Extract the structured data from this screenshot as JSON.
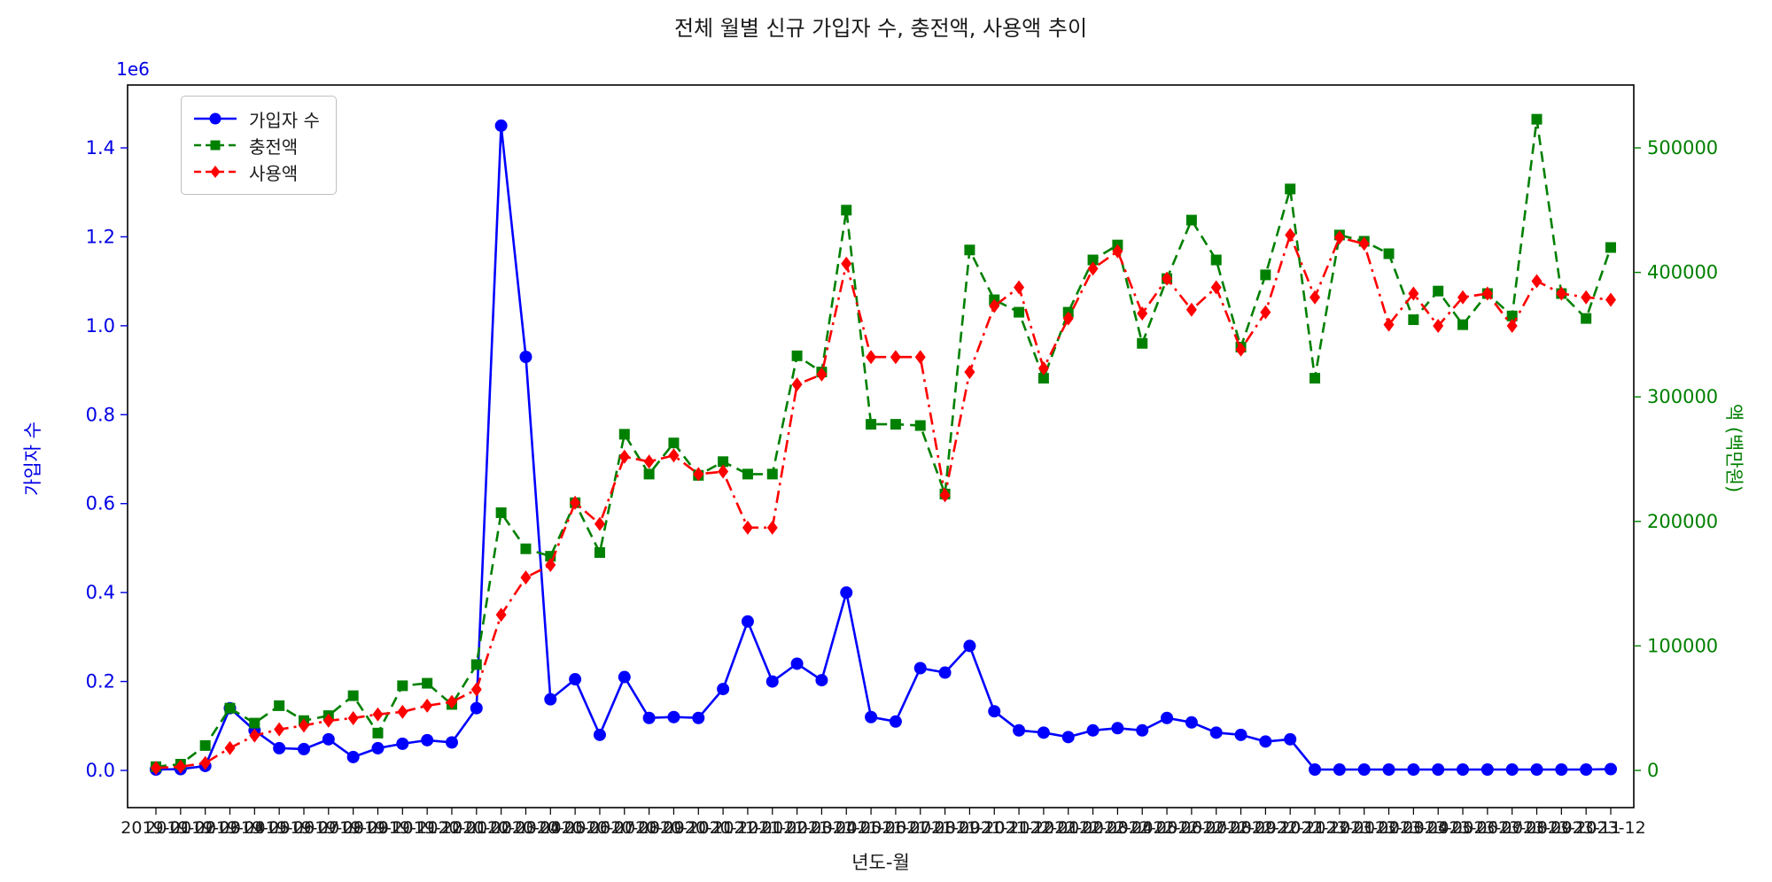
{
  "chart_data": {
    "type": "line",
    "title": "전체 월별 신규 가입자 수, 충전액, 사용액 추이",
    "xlabel": "년도-월",
    "ylabel_left": "가입자 수",
    "ylabel_right": "액 (백만원)",
    "legend_position": "upper-left",
    "grid": false,
    "left_axis": {
      "offset_text": "1e6",
      "color": "#0000e6",
      "max": 1400000,
      "ticks": [
        0,
        0.2,
        0.4,
        0.6,
        0.8,
        1.0,
        1.2,
        1.4
      ],
      "tick_labels": [
        "0.0",
        "0.2",
        "0.4",
        "0.6",
        "0.8",
        "1.0",
        "1.2",
        "1.4"
      ]
    },
    "right_axis": {
      "color": "#008000",
      "max": 500000,
      "ticks": [
        0,
        100000,
        200000,
        300000,
        400000,
        500000
      ],
      "tick_labels": [
        "0",
        "100000",
        "200000",
        "300000",
        "400000",
        "500000"
      ]
    },
    "categories": [
      "2019-01",
      "2019-02",
      "2019-03",
      "2019-04",
      "2019-05",
      "2019-06",
      "2019-07",
      "2019-08",
      "2019-09",
      "2019-10",
      "2019-11",
      "2019-12",
      "2020-01",
      "2020-02",
      "2020-03",
      "2020-04",
      "2020-05",
      "2020-06",
      "2020-07",
      "2020-08",
      "2020-09",
      "2020-10",
      "2020-11",
      "2020-12",
      "2021-01",
      "2021-02",
      "2021-03",
      "2021-04",
      "2021-05",
      "2021-06",
      "2021-07",
      "2021-08",
      "2021-09",
      "2021-10",
      "2021-11",
      "2021-12",
      "2022-01",
      "2022-02",
      "2022-03",
      "2022-04",
      "2022-05",
      "2022-06",
      "2022-07",
      "2022-08",
      "2022-09",
      "2022-10",
      "2022-11",
      "2022-12",
      "2023-01",
      "2023-02",
      "2023-03",
      "2023-04",
      "2023-05",
      "2023-06",
      "2023-07",
      "2023-08",
      "2023-09",
      "2023-10",
      "2023-11",
      "2023-12"
    ],
    "series": [
      {
        "name": "가입자 수",
        "axis": "left",
        "color": "#0000ff",
        "marker": "circle",
        "dash": "solid",
        "values": [
          2000,
          3000,
          10000,
          140000,
          90000,
          50000,
          48000,
          70000,
          30000,
          50000,
          60000,
          68000,
          63000,
          140000,
          1450000,
          930000,
          160000,
          205000,
          80000,
          210000,
          118000,
          120000,
          118000,
          183000,
          335000,
          200000,
          240000,
          203000,
          400000,
          120000,
          110000,
          230000,
          220000,
          280000,
          133000,
          90000,
          85000,
          75000,
          90000,
          95000,
          90000,
          118000,
          108000,
          85000,
          80000,
          65000,
          70000,
          2000,
          2000,
          2000,
          2000,
          2000,
          2000,
          2000,
          2000,
          2000,
          2000,
          2000,
          2000,
          3000
        ]
      },
      {
        "name": "충전액",
        "axis": "right",
        "color": "#008000",
        "marker": "square",
        "dash": "dashed",
        "values": [
          3000,
          5000,
          20000,
          50000,
          38000,
          52000,
          40000,
          44000,
          60000,
          30000,
          68000,
          70000,
          53000,
          85000,
          207000,
          178000,
          172000,
          215000,
          175000,
          270000,
          238000,
          263000,
          237000,
          248000,
          238000,
          238000,
          333000,
          320000,
          450000,
          278000,
          278000,
          277000,
          222000,
          418000,
          378000,
          368000,
          315000,
          368000,
          410000,
          422000,
          343000,
          395000,
          442000,
          410000,
          340000,
          398000,
          467000,
          315000,
          430000,
          425000,
          415000,
          362000,
          385000,
          358000,
          383000,
          365000,
          523000,
          383000,
          363000,
          420000
        ]
      },
      {
        "name": "사용액",
        "axis": "right",
        "color": "#ff0000",
        "marker": "diamond",
        "dash": "dashdot",
        "values": [
          2000,
          3000,
          6000,
          18000,
          28000,
          33000,
          36000,
          40000,
          42000,
          45000,
          47000,
          52000,
          55000,
          65000,
          125000,
          155000,
          165000,
          215000,
          198000,
          252000,
          248000,
          253000,
          238000,
          240000,
          195000,
          195000,
          310000,
          318000,
          407000,
          332000,
          332000,
          332000,
          221000,
          320000,
          373000,
          388000,
          323000,
          363000,
          403000,
          417000,
          367000,
          395000,
          370000,
          388000,
          338000,
          368000,
          430000,
          380000,
          428000,
          423000,
          358000,
          383000,
          357000,
          380000,
          383000,
          357000,
          393000,
          383000,
          380000,
          378000
        ]
      }
    ]
  }
}
